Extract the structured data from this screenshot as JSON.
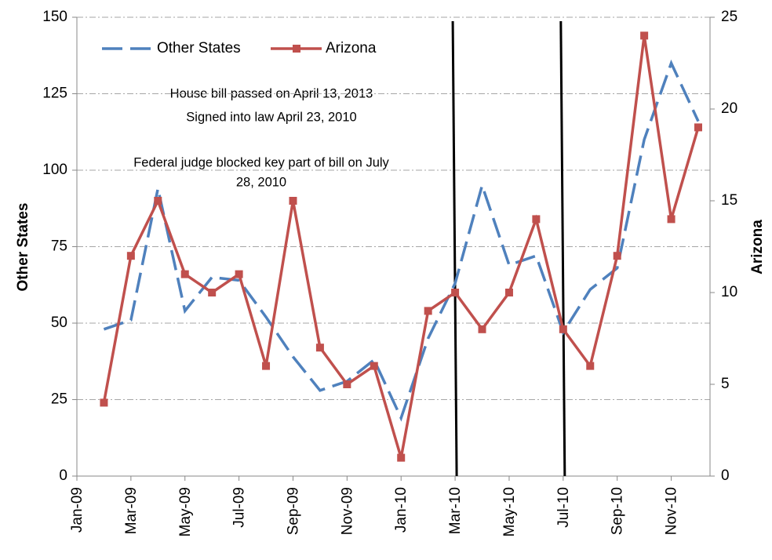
{
  "chart_data": {
    "type": "line",
    "y_axis_label": "Other States",
    "y2_axis_label": "Arizona",
    "annotations": [
      "House bill passed on April 13, 2013",
      "Signed into law April 23, 2010",
      "Federal judge blocked key part of bill on July",
      "28, 2010"
    ],
    "x": [
      "Feb-09",
      "Mar-09",
      "Apr-09",
      "May-09",
      "Jun-09",
      "Jul-09",
      "Aug-09",
      "Sep-09",
      "Oct-09",
      "Nov-09",
      "Dec-09",
      "Jan-10",
      "Feb-10",
      "Mar-10",
      "Apr-10",
      "May-10",
      "Jun-10",
      "Jul-10",
      "Aug-10",
      "Sep-10",
      "Oct-10",
      "Nov-10",
      "Dec-10"
    ],
    "xlim": [
      "Jan-09",
      "Dec-10"
    ],
    "xticks": [
      "Jan-09",
      "Mar-09",
      "May-09",
      "Jul-09",
      "Sep-09",
      "Nov-09",
      "Jan-10",
      "Mar-10",
      "May-10",
      "Jul-10",
      "Sep-10",
      "Nov-10"
    ],
    "vlines": [
      "Mar-10",
      "Jul-10"
    ],
    "ylim": [
      0,
      150
    ],
    "yticks": [
      0,
      25,
      50,
      75,
      100,
      125,
      150
    ],
    "y2lim": [
      0,
      25
    ],
    "y2ticks": [
      0,
      5,
      10,
      15,
      20,
      25
    ],
    "grid": true,
    "legend": "top",
    "series": [
      {
        "name": "Other States",
        "color": "#4f81bd",
        "style": "dashed",
        "values": [
          48,
          51,
          94,
          54,
          65,
          64,
          52,
          39,
          28,
          31,
          38,
          19,
          45,
          63,
          95,
          69,
          72,
          47,
          61,
          68,
          110,
          135,
          116
        ]
      },
      {
        "name": "Arizona",
        "color": "#c0504d",
        "axis": "y2",
        "marker": "square",
        "values": [
          4,
          12,
          15,
          11,
          10,
          11,
          6,
          15,
          7,
          5,
          6,
          1,
          9,
          10,
          8,
          10,
          14,
          8,
          6,
          12,
          24,
          14,
          19
        ]
      }
    ]
  }
}
